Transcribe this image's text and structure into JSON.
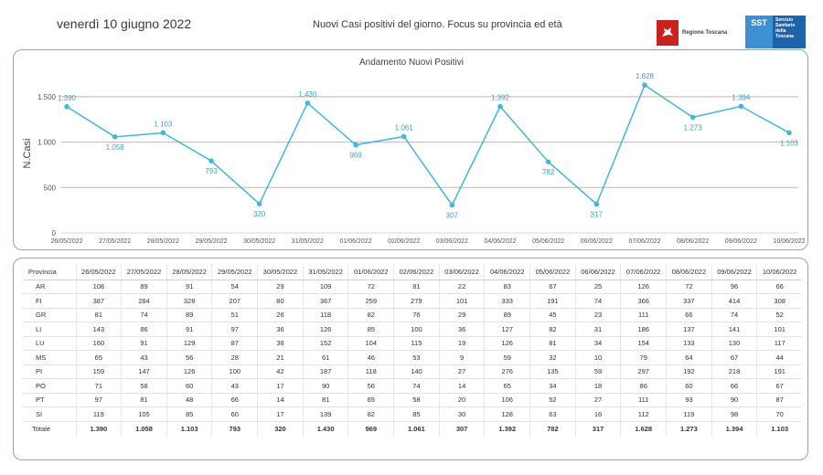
{
  "header": {
    "date": "venerdì 10 giugno 2022",
    "title": "Nuovi Casi positivi del giorno. Focus su provincia ed età",
    "logo_rt_label": "Regione Toscana",
    "logo_sst_mark": "SST",
    "logo_sst_text": "Servizio Sanitario della Toscana"
  },
  "chart_data": {
    "type": "line",
    "title": "Andamento Nuovi Positivi",
    "xlabel": "",
    "ylabel": "N.Casi",
    "ylim": [
      0,
      1750
    ],
    "yticks": [
      0,
      500,
      1000,
      1500
    ],
    "ytick_labels": [
      "0",
      "500",
      "1.000",
      "1.500"
    ],
    "grid": true,
    "line_color": "#41b8d9",
    "grid_color": "#e0a99b",
    "categories": [
      "26/05/2022",
      "27/05/2022",
      "28/05/2022",
      "29/05/2022",
      "30/05/2022",
      "31/05/2022",
      "01/06/2022",
      "02/06/2022",
      "03/06/2022",
      "04/06/2022",
      "05/06/2022",
      "06/06/2022",
      "07/06/2022",
      "08/06/2022",
      "09/06/2022",
      "10/06/2022"
    ],
    "values": [
      1390,
      1058,
      1103,
      793,
      320,
      1430,
      969,
      1061,
      307,
      1392,
      782,
      317,
      1628,
      1273,
      1394,
      1103
    ],
    "value_labels": [
      "1.390",
      "1.058",
      "1.103",
      "793",
      "320",
      "1.430",
      "969",
      "1.061",
      "307",
      "1.392",
      "782",
      "317",
      "1.628",
      "1.273",
      "1.394",
      "1.103"
    ]
  },
  "table": {
    "header_label": "Provincia",
    "dates": [
      "26/05/2022",
      "27/05/2022",
      "28/05/2022",
      "29/05/2022",
      "30/05/2022",
      "31/05/2022",
      "01/06/2022",
      "02/06/2022",
      "03/06/2022",
      "04/06/2022",
      "05/06/2022",
      "06/06/2022",
      "07/06/2022",
      "08/06/2022",
      "09/06/2022",
      "10/06/2022"
    ],
    "rows": [
      {
        "name": "AR",
        "values": [
          "108",
          "89",
          "91",
          "54",
          "29",
          "109",
          "72",
          "81",
          "22",
          "83",
          "67",
          "25",
          "126",
          "72",
          "96",
          "66"
        ]
      },
      {
        "name": "FI",
        "values": [
          "387",
          "284",
          "328",
          "207",
          "80",
          "367",
          "259",
          "279",
          "101",
          "333",
          "191",
          "74",
          "366",
          "337",
          "414",
          "308"
        ]
      },
      {
        "name": "GR",
        "values": [
          "81",
          "74",
          "89",
          "51",
          "26",
          "118",
          "82",
          "76",
          "29",
          "89",
          "45",
          "23",
          "111",
          "66",
          "74",
          "52"
        ]
      },
      {
        "name": "LI",
        "values": [
          "143",
          "86",
          "91",
          "97",
          "36",
          "126",
          "85",
          "100",
          "36",
          "127",
          "82",
          "31",
          "186",
          "137",
          "141",
          "101"
        ]
      },
      {
        "name": "LU",
        "values": [
          "160",
          "91",
          "129",
          "87",
          "38",
          "152",
          "104",
          "115",
          "19",
          "126",
          "81",
          "34",
          "154",
          "133",
          "130",
          "117"
        ]
      },
      {
        "name": "MS",
        "values": [
          "65",
          "43",
          "56",
          "28",
          "21",
          "61",
          "46",
          "53",
          "9",
          "59",
          "32",
          "10",
          "79",
          "64",
          "67",
          "44"
        ]
      },
      {
        "name": "PI",
        "values": [
          "159",
          "147",
          "126",
          "100",
          "42",
          "187",
          "118",
          "140",
          "27",
          "276",
          "135",
          "59",
          "297",
          "192",
          "218",
          "191"
        ]
      },
      {
        "name": "PO",
        "values": [
          "71",
          "58",
          "60",
          "43",
          "17",
          "90",
          "56",
          "74",
          "14",
          "65",
          "34",
          "18",
          "86",
          "60",
          "66",
          "67"
        ]
      },
      {
        "name": "PT",
        "values": [
          "97",
          "81",
          "48",
          "66",
          "14",
          "81",
          "65",
          "58",
          "20",
          "106",
          "52",
          "27",
          "111",
          "93",
          "90",
          "87"
        ]
      },
      {
        "name": "SI",
        "values": [
          "119",
          "105",
          "85",
          "60",
          "17",
          "139",
          "82",
          "85",
          "30",
          "128",
          "63",
          "16",
          "112",
          "119",
          "98",
          "70"
        ]
      }
    ],
    "total": {
      "name": "Totale",
      "values": [
        "1.390",
        "1.058",
        "1.103",
        "793",
        "320",
        "1.430",
        "969",
        "1.061",
        "307",
        "1.392",
        "782",
        "317",
        "1.628",
        "1.273",
        "1.394",
        "1.103"
      ]
    }
  }
}
